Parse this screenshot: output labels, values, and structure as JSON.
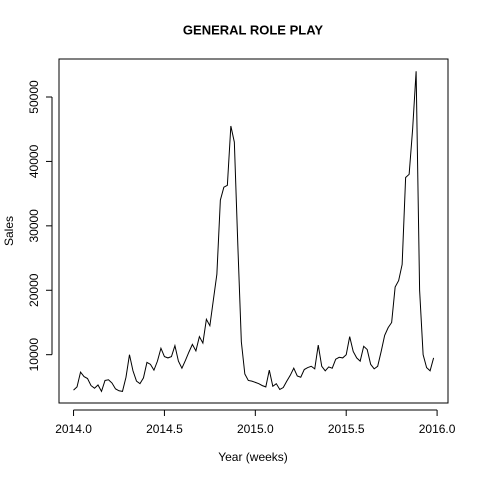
{
  "chart_data": {
    "type": "line",
    "title": "GENERAL ROLE PLAY",
    "x_label": "Year (weeks)",
    "y_label": "Sales",
    "x": [
      2014,
      2014.0192,
      2014.0385,
      2014.0577,
      2014.0769,
      2014.0962,
      2014.1154,
      2014.1346,
      2014.1538,
      2014.1731,
      2014.1923,
      2014.2115,
      2014.2308,
      2014.25,
      2014.2692,
      2014.2885,
      2014.3077,
      2014.3269,
      2014.3462,
      2014.3654,
      2014.3846,
      2014.4038,
      2014.4231,
      2014.4423,
      2014.4615,
      2014.4808,
      2014.5,
      2014.5192,
      2014.5385,
      2014.5577,
      2014.5769,
      2014.5962,
      2014.6154,
      2014.6346,
      2014.6538,
      2014.6731,
      2014.6923,
      2014.7115,
      2014.7308,
      2014.75,
      2014.7692,
      2014.7885,
      2014.8077,
      2014.8269,
      2014.8462,
      2014.8654,
      2014.8846,
      2014.9038,
      2014.9231,
      2014.9423,
      2014.9615,
      2014.9808,
      2015,
      2015.0192,
      2015.0385,
      2015.0577,
      2015.0769,
      2015.0962,
      2015.1154,
      2015.1346,
      2015.1538,
      2015.1731,
      2015.1923,
      2015.2115,
      2015.2308,
      2015.25,
      2015.2692,
      2015.2885,
      2015.3077,
      2015.3269,
      2015.3462,
      2015.3654,
      2015.3846,
      2015.4038,
      2015.4231,
      2015.4423,
      2015.4615,
      2015.4808,
      2015.5,
      2015.5192,
      2015.5385,
      2015.5577,
      2015.5769,
      2015.5962,
      2015.6154,
      2015.6346,
      2015.6538,
      2015.6731,
      2015.6923,
      2015.7115,
      2015.7308,
      2015.75,
      2015.7692,
      2015.7885,
      2015.8077,
      2015.8269,
      2015.8462,
      2015.8654,
      2015.8846,
      2015.9038,
      2015.9231,
      2015.9423,
      2015.9615,
      2015.9808
    ],
    "series": [
      {
        "name": "Sales",
        "color": "#000000",
        "values": [
          4500,
          5000,
          7300,
          6600,
          6300,
          5200,
          4800,
          5300,
          4300,
          6000,
          6100,
          5600,
          4700,
          4400,
          4300,
          6500,
          10000,
          7500,
          5900,
          5500,
          6400,
          8800,
          8500,
          7600,
          9000,
          11000,
          9700,
          9500,
          9700,
          11400,
          9000,
          7900,
          9100,
          10400,
          11600,
          10600,
          12800,
          11800,
          15500,
          14500,
          18500,
          22500,
          34000,
          36000,
          36300,
          45500,
          43000,
          27000,
          12000,
          7000,
          6000,
          5900,
          5700,
          5500,
          5200,
          5000,
          7600,
          5100,
          5500,
          4600,
          4900,
          5900,
          6800,
          7900,
          6700,
          6500,
          7700,
          8000,
          8200,
          7800,
          11500,
          8200,
          7500,
          8100,
          7900,
          9300,
          9600,
          9500,
          10000,
          12800,
          10500,
          9500,
          9000,
          11300,
          10800,
          8500,
          7800,
          8200,
          10500,
          13000,
          14200,
          15000,
          20500,
          21500,
          24000,
          37500,
          38000,
          45000,
          54000,
          20000,
          10000,
          8000,
          7500,
          9500
        ]
      }
    ],
    "xlim": [
      2013.92,
      2016.06
    ],
    "ylim": [
      2500,
      55900
    ],
    "xticks": [
      {
        "value": 2014,
        "label": "2014.0"
      },
      {
        "value": 2014.5,
        "label": "2014.5"
      },
      {
        "value": 2015,
        "label": "2015.0"
      },
      {
        "value": 2015.5,
        "label": "2015.5"
      },
      {
        "value": 2016,
        "label": "2016.0"
      }
    ],
    "yticks": [
      10000,
      20000,
      30000,
      40000,
      50000
    ]
  }
}
